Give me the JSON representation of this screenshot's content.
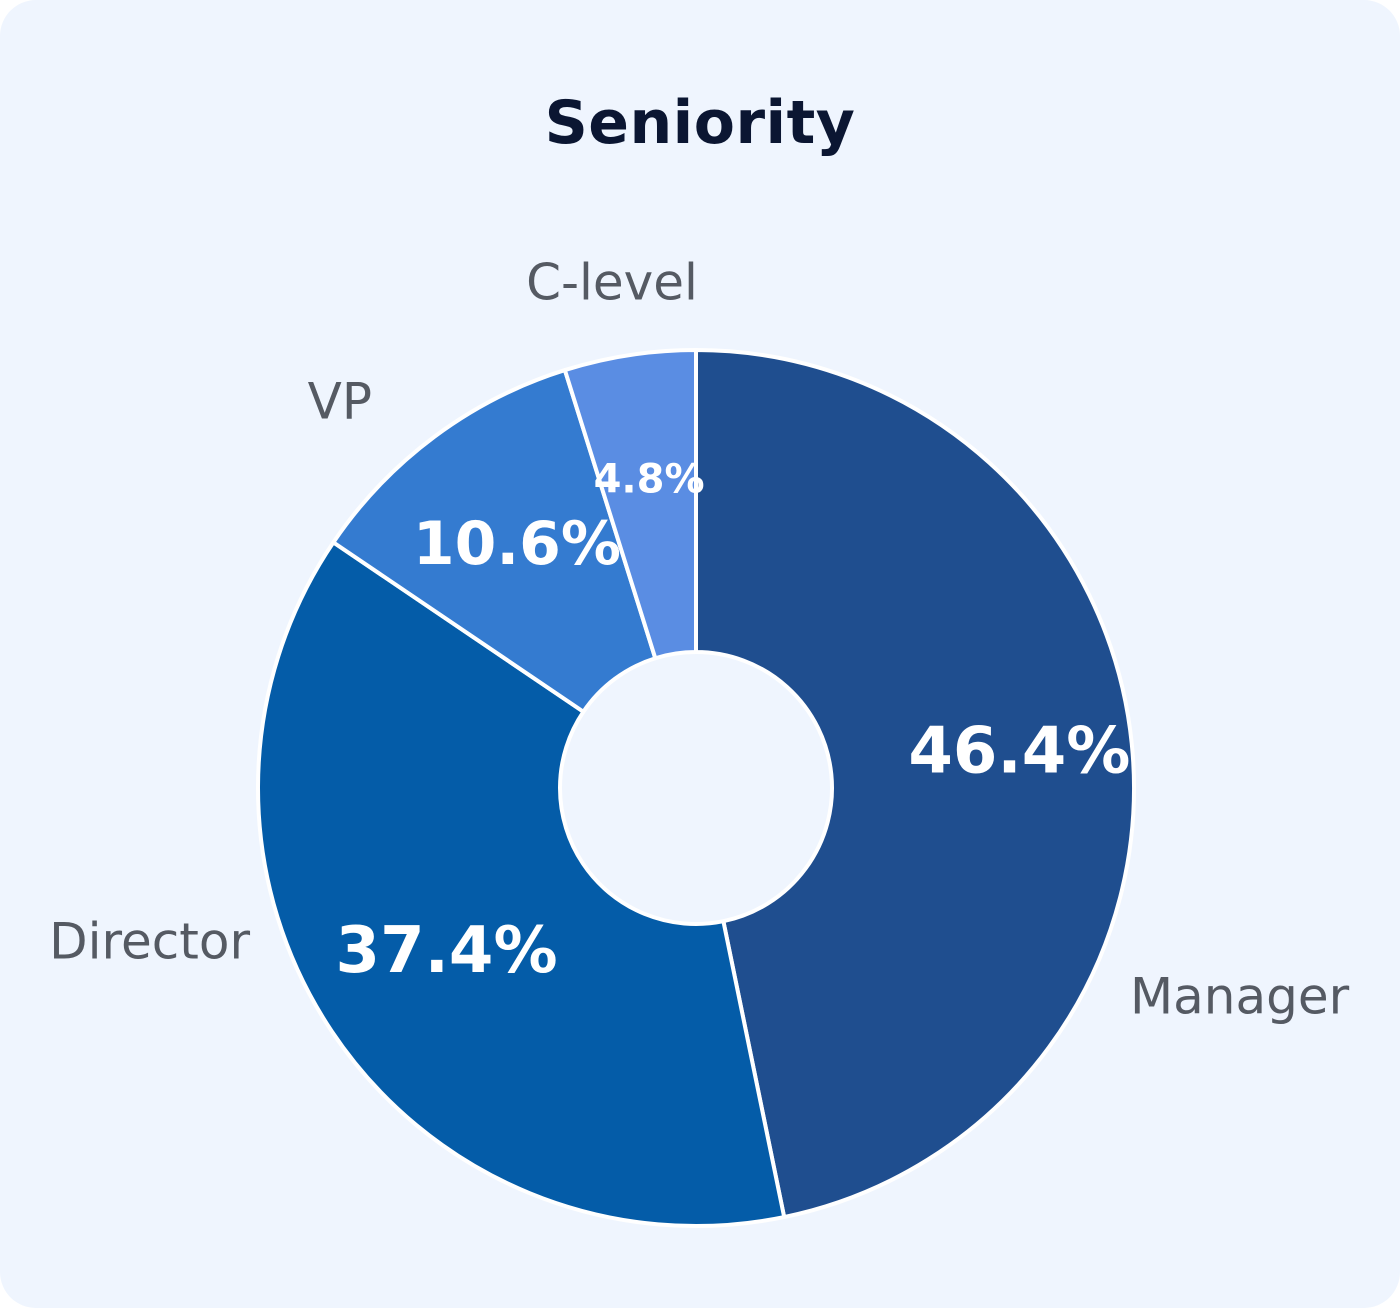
{
  "chart_data": {
    "type": "pie",
    "title": "Seniority",
    "slices": [
      {
        "label": "Manager",
        "value": 46.4,
        "display": "46.4%",
        "color": "#1f4e8f"
      },
      {
        "label": "Director",
        "value": 37.4,
        "display": "37.4%",
        "color": "#045ca8"
      },
      {
        "label": "VP",
        "value": 10.6,
        "display": "10.6%",
        "color": "#347bd0"
      },
      {
        "label": "C-level",
        "value": 4.8,
        "display": "4.8%",
        "color": "#5a8de3"
      }
    ],
    "donut": true,
    "legend": "none"
  }
}
